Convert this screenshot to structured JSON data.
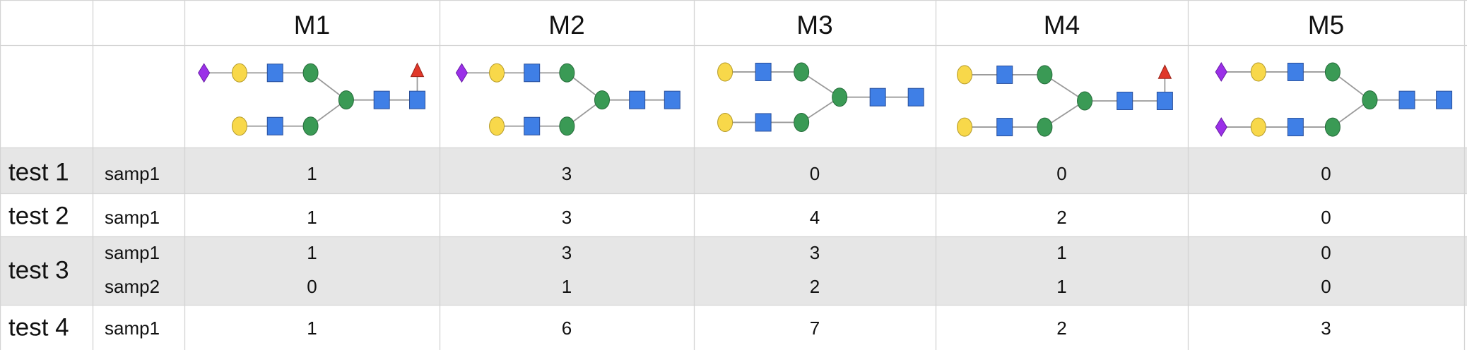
{
  "header": {
    "columns": [
      "M1",
      "M2",
      "M3",
      "M4",
      "M5"
    ]
  },
  "rows": [
    {
      "group": "test 1",
      "samples": [
        {
          "name": "samp1",
          "values": [
            1,
            3,
            0,
            0,
            0
          ]
        }
      ]
    },
    {
      "group": "test 2",
      "samples": [
        {
          "name": "samp1",
          "values": [
            1,
            3,
            4,
            2,
            0
          ]
        }
      ]
    },
    {
      "group": "test 3",
      "samples": [
        {
          "name": "samp1",
          "values": [
            1,
            3,
            3,
            1,
            0
          ]
        },
        {
          "name": "samp2",
          "values": [
            0,
            1,
            2,
            1,
            0
          ]
        }
      ]
    },
    {
      "group": "test 4",
      "samples": [
        {
          "name": "samp1",
          "values": [
            1,
            6,
            7,
            2,
            3
          ]
        }
      ]
    }
  ]
}
